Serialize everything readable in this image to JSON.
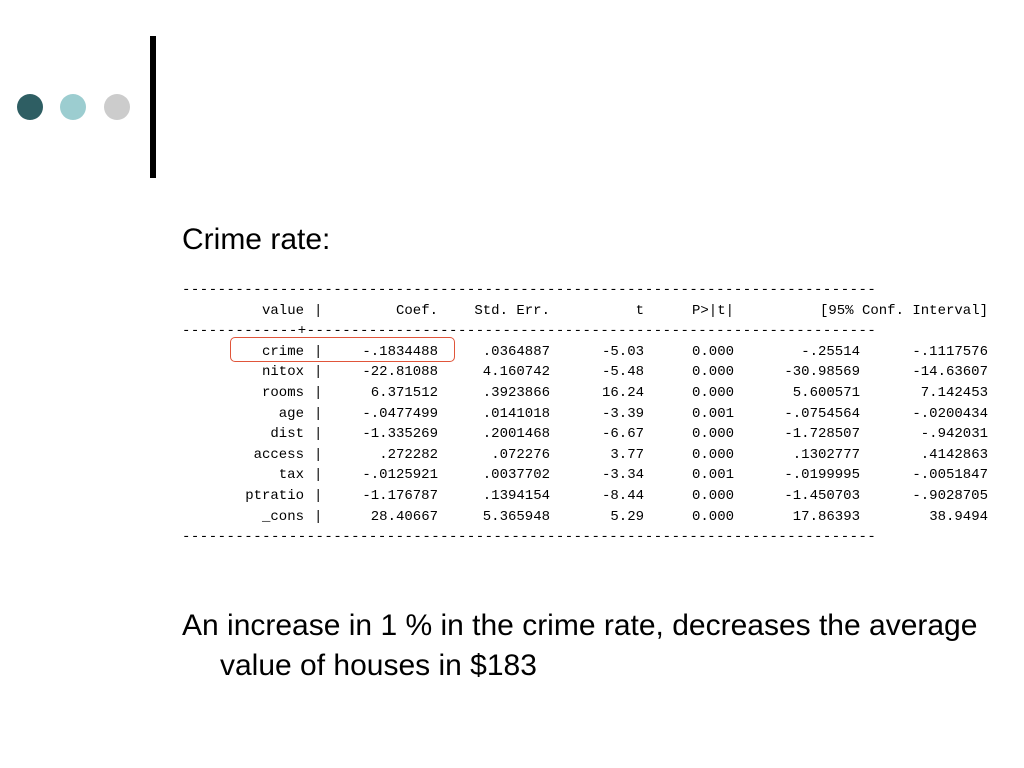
{
  "decor": {
    "dots": [
      "#2e5e63",
      "#9ccdd0",
      "#cccccc"
    ],
    "bar_color": "#000000",
    "highlight_color": "#e0553a"
  },
  "heading": "Crime rate:",
  "table": {
    "dash_line": "------------------------------------------------------------------------------",
    "header_sep_line": "-------------+----------------------------------------------------------------",
    "separator": "|",
    "header": {
      "var": "value",
      "coef": "Coef.",
      "se": "Std. Err.",
      "t": "t",
      "p": "P>|t|",
      "conf": "[95% Conf. Interval]"
    },
    "rows": [
      {
        "var": "crime",
        "coef": "-.1834488",
        "se": ".0364887",
        "t": "-5.03",
        "p": "0.000",
        "lo": "-.25514",
        "hi": "-.1117576"
      },
      {
        "var": "nitox",
        "coef": "-22.81088",
        "se": "4.160742",
        "t": "-5.48",
        "p": "0.000",
        "lo": "-30.98569",
        "hi": "-14.63607"
      },
      {
        "var": "rooms",
        "coef": "6.371512",
        "se": ".3923866",
        "t": "16.24",
        "p": "0.000",
        "lo": "5.600571",
        "hi": "7.142453"
      },
      {
        "var": "age",
        "coef": "-.0477499",
        "se": ".0141018",
        "t": "-3.39",
        "p": "0.001",
        "lo": "-.0754564",
        "hi": "-.0200434"
      },
      {
        "var": "dist",
        "coef": "-1.335269",
        "se": ".2001468",
        "t": "-6.67",
        "p": "0.000",
        "lo": "-1.728507",
        "hi": "-.942031"
      },
      {
        "var": "access",
        "coef": ".272282",
        "se": ".072276",
        "t": "3.77",
        "p": "0.000",
        "lo": ".1302777",
        "hi": ".4142863"
      },
      {
        "var": "tax",
        "coef": "-.0125921",
        "se": ".0037702",
        "t": "-3.34",
        "p": "0.001",
        "lo": "-.0199995",
        "hi": "-.0051847"
      },
      {
        "var": "ptratio",
        "coef": "-1.176787",
        "se": ".1394154",
        "t": "-8.44",
        "p": "0.000",
        "lo": "-1.450703",
        "hi": "-.9028705"
      },
      {
        "var": "_cons",
        "coef": "28.40667",
        "se": "5.365948",
        "t": "5.29",
        "p": "0.000",
        "lo": "17.86393",
        "hi": "38.9494"
      }
    ]
  },
  "conclusion": "An increase in 1 % in the crime rate, decreases the average value of houses in $183"
}
